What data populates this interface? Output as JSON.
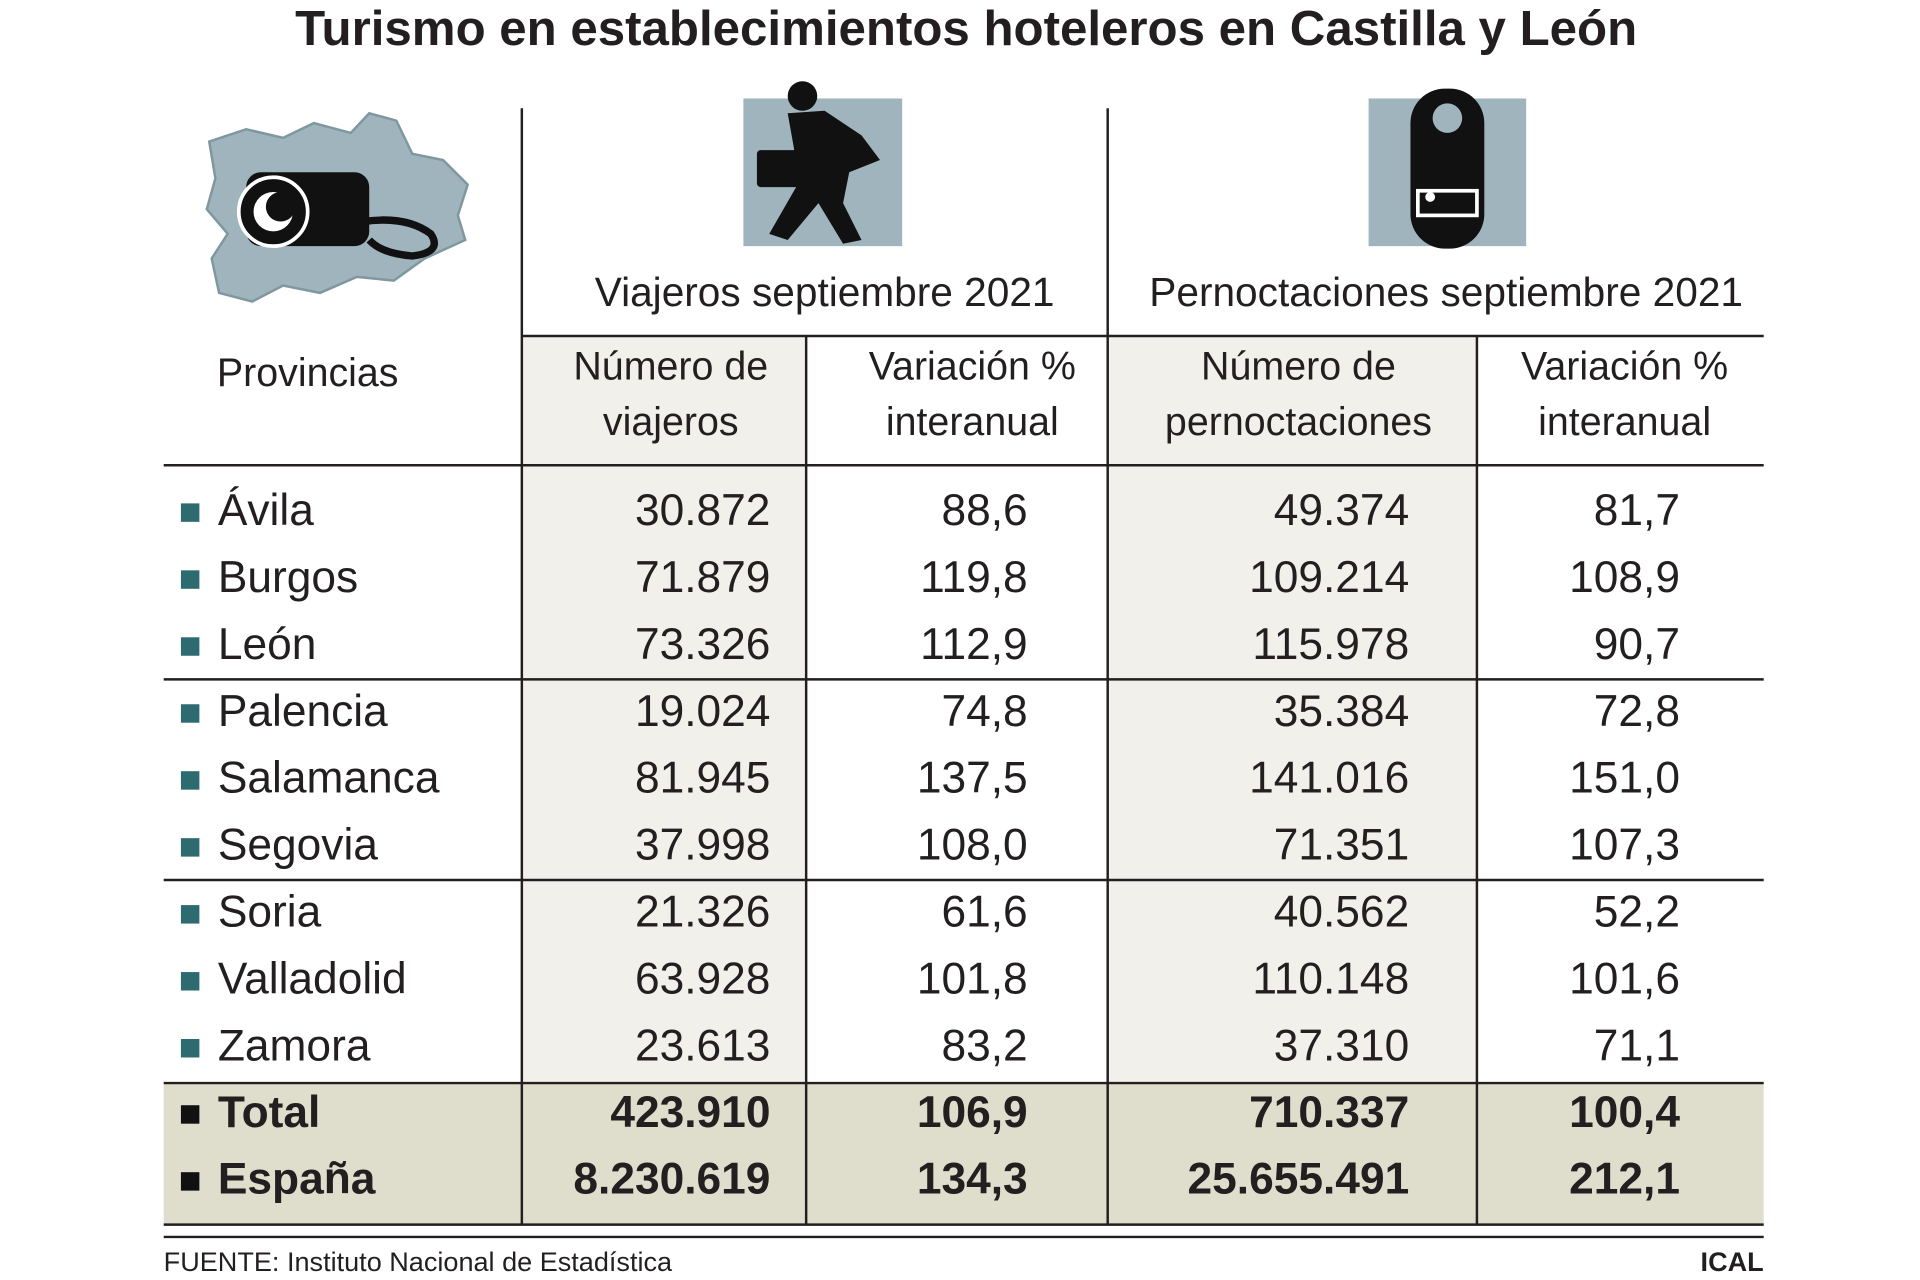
{
  "header": {
    "title": "Turismo en establecimientos hoteleros en Castilla y León"
  },
  "table": {
    "row_header": "Provincias",
    "groups": [
      "Viajeros septiembre 2021",
      "Pernoctaciones septiembre 2021"
    ],
    "columns": [
      [
        "Número de",
        "viajeros"
      ],
      [
        "Variación %",
        "interanual"
      ],
      [
        "Número de",
        "pernoctaciones"
      ],
      [
        "Variación %",
        "interanual"
      ]
    ],
    "rows": [
      [
        "Ávila",
        "30.872",
        "88,6",
        "49.374",
        "81,7"
      ],
      [
        "Burgos",
        "71.879",
        "119,8",
        "109.214",
        "108,9"
      ],
      [
        "León",
        "73.326",
        "112,9",
        "115.978",
        "90,7"
      ],
      [
        "Palencia",
        "19.024",
        "74,8",
        "35.384",
        "72,8"
      ],
      [
        "Salamanca",
        "81.945",
        "137,5",
        "141.016",
        "151,0"
      ],
      [
        "Segovia",
        "37.998",
        "108,0",
        "71.351",
        "107,3"
      ],
      [
        "Soria",
        "21.326",
        "61,6",
        "40.562",
        "52,2"
      ],
      [
        "Valladolid",
        "63.928",
        "101,8",
        "110.148",
        "101,6"
      ],
      [
        "Zamora",
        "23.613",
        "83,2",
        "37.310",
        "71,1"
      ]
    ],
    "totals": [
      [
        "Total",
        "423.910",
        "106,9",
        "710.337",
        "100,4"
      ],
      [
        "España",
        "8.230.619",
        "134,3",
        "25.655.491",
        "212,1"
      ]
    ]
  },
  "footer": {
    "source": "FUENTE: Instituto Nacional de Estadística",
    "credit": "ICAL"
  }
}
